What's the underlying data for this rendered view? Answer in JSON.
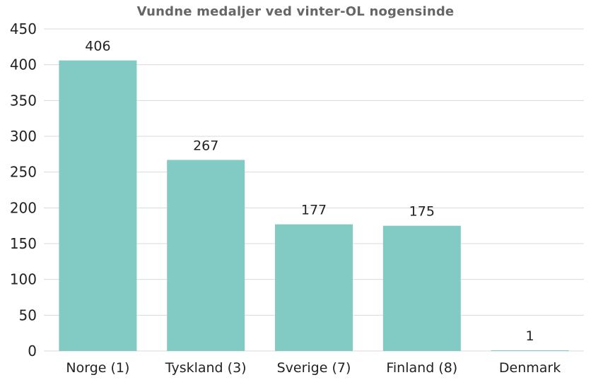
{
  "chart_data": {
    "type": "bar",
    "title": "Vundne medaljer ved vinter-OL nogensinde",
    "categories": [
      "Norge (1)",
      "Tyskland (3)",
      "Sverige (7)",
      "Finland (8)",
      "Denmark"
    ],
    "values": [
      406,
      267,
      177,
      175,
      1
    ],
    "xlabel": "",
    "ylabel": "",
    "ylim": [
      0,
      450
    ],
    "yticks": [
      0,
      50,
      100,
      150,
      200,
      250,
      300,
      350,
      400,
      450
    ],
    "grid": true,
    "legend": "none",
    "bar_color": "#82CBC4",
    "grid_color": "#D9D9D9"
  }
}
